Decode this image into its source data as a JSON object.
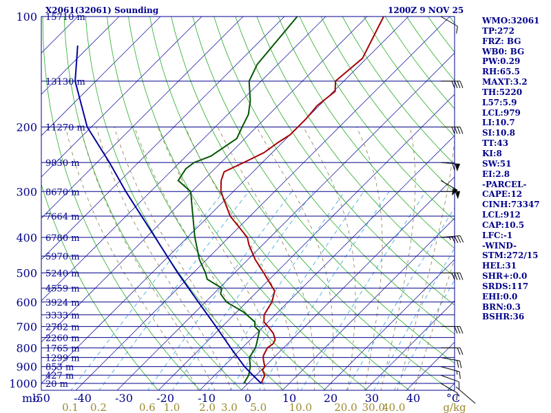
{
  "header": {
    "title": "X2061(32061) Sounding",
    "datetime": "1200Z  9 NOV 25"
  },
  "indices": [
    "WMO:32061",
    "TP:272",
    "FRZ: BG",
    "WB0: BG",
    "PW:0.29",
    "RH:65.5",
    "MAXT:3.2",
    "TH:5220",
    "L57:5.9",
    "LCL:979",
    "LI:10.7",
    "SI:10.8",
    "TT:43",
    "KI:8",
    "SW:51",
    "EI:2.8",
    "-PARCEL-",
    "CAPE:12",
    "CINH:73347",
    "LCL:912",
    "CAP:10.5",
    "LFC:-1",
    "-WIND-",
    "STM:272/15",
    "HEL:31",
    "SHR+:0.0",
    "SRDS:117",
    "EHI:0.0",
    "BRN:0.3",
    "BSHR:36"
  ],
  "chart_data": {
    "type": "skew-t",
    "title": "X2061(32061) Sounding",
    "x_axis": {
      "label": "°C",
      "unit_label": "mb",
      "range": [
        -50,
        50
      ],
      "ticks": [
        -50,
        -40,
        -30,
        -20,
        -10,
        0,
        10,
        20,
        30,
        40
      ],
      "tick_labels": [
        "-50",
        "-40",
        "-30",
        "-20",
        "-10",
        "0",
        "10",
        "20",
        "30",
        "40"
      ]
    },
    "y_axis": {
      "label": "mb",
      "scale": "log",
      "range": [
        1000,
        100
      ],
      "ticks": [
        1000,
        900,
        800,
        700,
        600,
        500,
        400,
        300,
        200,
        100
      ],
      "tick_labels": [
        "1000",
        "900",
        "800",
        "700",
        "600",
        "500",
        "400",
        "300",
        "200",
        "100"
      ]
    },
    "mixing_ratio_axis": {
      "unit_label": "g/kg",
      "tick_labels": [
        "0.1",
        "0.2",
        "0.6",
        "1.0",
        "2.0",
        "3.0",
        "5.0",
        "10.0",
        "20.0",
        "30.0",
        "40.0"
      ]
    },
    "height_labels": [
      {
        "p": 1000,
        "label": "20 m"
      },
      {
        "p": 950,
        "label": "427 m"
      },
      {
        "p": 900,
        "label": "853 m"
      },
      {
        "p": 850,
        "label": "1299 m"
      },
      {
        "p": 800,
        "label": "1765 m"
      },
      {
        "p": 750,
        "label": "2260 m"
      },
      {
        "p": 700,
        "label": "2782 m"
      },
      {
        "p": 650,
        "label": "3333 m"
      },
      {
        "p": 600,
        "label": "3924 m"
      },
      {
        "p": 550,
        "label": "4559 m"
      },
      {
        "p": 500,
        "label": "5240 m"
      },
      {
        "p": 450,
        "label": "5970 m"
      },
      {
        "p": 400,
        "label": "6780 m"
      },
      {
        "p": 350,
        "label": "7664 m"
      },
      {
        "p": 300,
        "label": "8670 m"
      },
      {
        "p": 250,
        "label": "9830 m"
      },
      {
        "p": 200,
        "label": "11270 m"
      },
      {
        "p": 150,
        "label": "13130 m"
      },
      {
        "p": 100,
        "label": "15710 m"
      }
    ],
    "series": [
      {
        "name": "Temperature",
        "color": "#a40000",
        "points": [
          [
            1000,
            3.2
          ],
          [
            950,
            2.1
          ],
          [
            920,
            0.3
          ],
          [
            900,
            0.0
          ],
          [
            860,
            -2.1
          ],
          [
            840,
            -3.0
          ],
          [
            800,
            -3.9
          ],
          [
            780,
            -3.5
          ],
          [
            760,
            -4.0
          ],
          [
            730,
            -6.0
          ],
          [
            700,
            -8.9
          ],
          [
            680,
            -11.0
          ],
          [
            650,
            -12.7
          ],
          [
            600,
            -13.9
          ],
          [
            560,
            -15.9
          ],
          [
            500,
            -22.9
          ],
          [
            460,
            -28.2
          ],
          [
            420,
            -33.2
          ],
          [
            400,
            -35.5
          ],
          [
            350,
            -44.8
          ],
          [
            300,
            -53.0
          ],
          [
            280,
            -55.6
          ],
          [
            265,
            -57.0
          ],
          [
            250,
            -54.5
          ],
          [
            235,
            -52.0
          ],
          [
            220,
            -51.0
          ],
          [
            210,
            -50.0
          ],
          [
            190,
            -50.0
          ],
          [
            175,
            -50.5
          ],
          [
            160,
            -49.6
          ],
          [
            150,
            -52.0
          ],
          [
            130,
            -51.0
          ],
          [
            100,
            -56.0
          ]
        ]
      },
      {
        "name": "Dewpoint",
        "color": "#005500",
        "points": [
          [
            1000,
            -1.0
          ],
          [
            950,
            -1.8
          ],
          [
            900,
            -3.5
          ],
          [
            850,
            -5.9
          ],
          [
            800,
            -6.8
          ],
          [
            780,
            -7.5
          ],
          [
            720,
            -9.9
          ],
          [
            700,
            -12.1
          ],
          [
            680,
            -13.2
          ],
          [
            640,
            -18.2
          ],
          [
            600,
            -24.9
          ],
          [
            570,
            -28.3
          ],
          [
            550,
            -29.4
          ],
          [
            520,
            -35.1
          ],
          [
            500,
            -37.0
          ],
          [
            460,
            -41.7
          ],
          [
            400,
            -48.2
          ],
          [
            330,
            -56.3
          ],
          [
            300,
            -60.3
          ],
          [
            280,
            -66.0
          ],
          [
            260,
            -67.0
          ],
          [
            250,
            -66.5
          ],
          [
            240,
            -64.0
          ],
          [
            215,
            -62.0
          ],
          [
            200,
            -63.5
          ],
          [
            185,
            -65.0
          ],
          [
            170,
            -67.8
          ],
          [
            150,
            -72.9
          ],
          [
            135,
            -75.0
          ],
          [
            100,
            -76.9
          ]
        ]
      },
      {
        "name": "Parcel",
        "color": "#00009b",
        "points": [
          [
            1000,
            3.2
          ],
          [
            950,
            -0.8
          ],
          [
            900,
            -4.9
          ],
          [
            800,
            -12.8
          ],
          [
            700,
            -21.5
          ],
          [
            600,
            -31.7
          ],
          [
            500,
            -43.7
          ],
          [
            400,
            -57.8
          ],
          [
            300,
            -76.0
          ],
          [
            250,
            -87.0
          ],
          [
            200,
            -101.0
          ],
          [
            150,
            -115.0
          ],
          [
            120,
            -123.0
          ]
        ]
      }
    ],
    "wind_barbs": [
      {
        "p": 1000,
        "dir": 300,
        "spd": 10
      },
      {
        "p": 950,
        "dir": 290,
        "spd": 10
      },
      {
        "p": 900,
        "dir": 285,
        "spd": 15
      },
      {
        "p": 850,
        "dir": 280,
        "spd": 20
      },
      {
        "p": 800,
        "dir": 270,
        "spd": 20
      },
      {
        "p": 700,
        "dir": 270,
        "spd": 30
      },
      {
        "p": 500,
        "dir": 270,
        "spd": 40
      },
      {
        "p": 400,
        "dir": 265,
        "spd": 45
      },
      {
        "p": 300,
        "dir": 270,
        "spd": 60
      },
      {
        "p": 280,
        "dir": 300,
        "spd": 60
      },
      {
        "p": 250,
        "dir": 275,
        "spd": 70
      },
      {
        "p": 200,
        "dir": 270,
        "spd": 40
      },
      {
        "p": 150,
        "dir": 270,
        "spd": 40
      },
      {
        "p": 100,
        "dir": 300,
        "spd": 10
      }
    ]
  }
}
